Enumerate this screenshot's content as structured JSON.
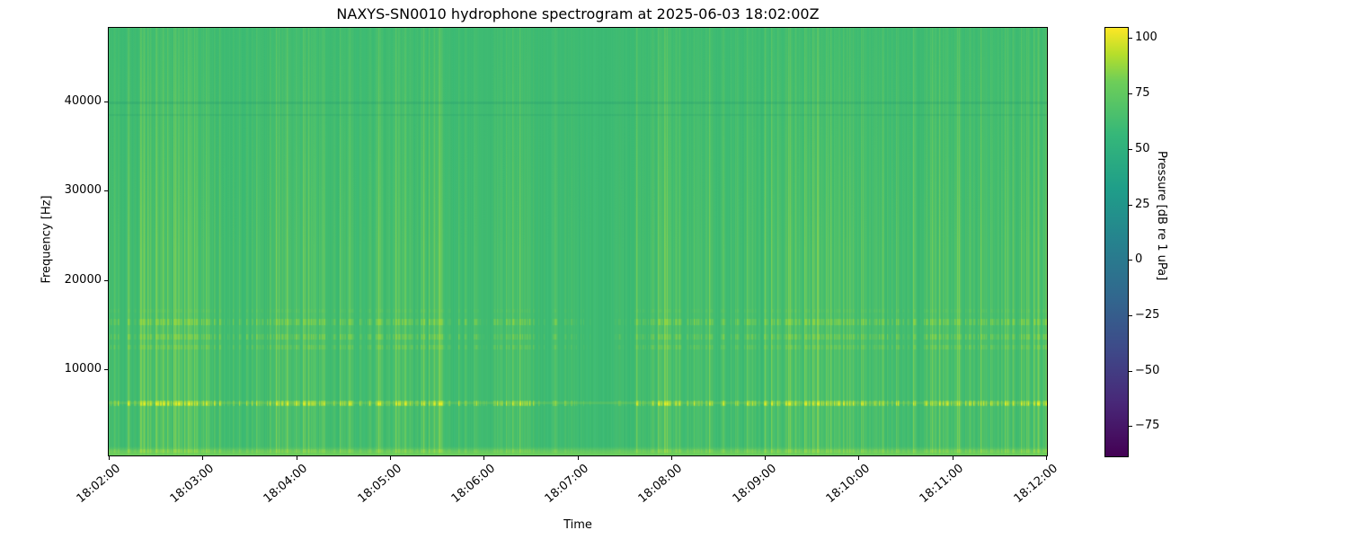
{
  "figure": {
    "background_color": "#ffffff"
  },
  "chart_data": {
    "type": "heatmap",
    "subtype": "spectrogram",
    "title": "NAXYS-SN0010 hydrophone spectrogram at 2025-06-03 18:02:00Z",
    "xlabel": "Time",
    "ylabel": "Frequency [Hz]",
    "x_tick_labels": [
      "18:02:00",
      "18:03:00",
      "18:04:00",
      "18:05:00",
      "18:06:00",
      "18:07:00",
      "18:08:00",
      "18:09:00",
      "18:10:00",
      "18:11:00",
      "18:12:00"
    ],
    "x_range": [
      "18:02:00",
      "18:12:00"
    ],
    "time_span_minutes": 10,
    "y_tick_values": [
      10000,
      20000,
      30000,
      40000
    ],
    "y_tick_labels": [
      "10000",
      "20000",
      "30000",
      "40000"
    ],
    "y_range_hz": [
      400,
      48200
    ],
    "grid": false,
    "legend": "none",
    "colorbar": {
      "label": "Pressure [dB re 1 uPa]",
      "tick_values": [
        100,
        75,
        50,
        25,
        0,
        -25,
        -50,
        -75
      ],
      "tick_labels": [
        "100",
        "75",
        "50",
        "25",
        "0",
        "−25",
        "−50",
        "−75"
      ],
      "vmin": -89,
      "vmax": 105,
      "colormap": "viridis",
      "gradient_stops": [
        {
          "pos": 0.0,
          "color": "#440154"
        },
        {
          "pos": 0.125,
          "color": "#482878"
        },
        {
          "pos": 0.25,
          "color": "#3e4a89"
        },
        {
          "pos": 0.375,
          "color": "#31688e"
        },
        {
          "pos": 0.5,
          "color": "#26828e"
        },
        {
          "pos": 0.625,
          "color": "#1f9e89"
        },
        {
          "pos": 0.75,
          "color": "#35b779"
        },
        {
          "pos": 0.875,
          "color": "#6ece58"
        },
        {
          "pos": 0.938,
          "color": "#b5de2b"
        },
        {
          "pos": 1.0,
          "color": "#fde725"
        }
      ]
    },
    "content": {
      "description": "Ambient level ~50-60 dB (mid-green) across 0.4-48 kHz; dense vertical broadband transient streaks clustered in time; bright tonal dashed band near 6.2 kHz; weaker dashed tonal bands near 12.6, 13.7, 15.4 and 16.6 kHz; faint darker notch lines near 38.5 and 39.9 kHz; brighter low-frequency strip below 1 kHz.",
      "background_color": "#3cbb74",
      "background_rgb": "60,187,116",
      "streak_rgb": "150,218,72",
      "streak_hot_rgb": "205,230,55",
      "render_seed": 1337,
      "bands": [
        {
          "name": "tonal-band-6200hz",
          "center_hz": 6200,
          "px": 6,
          "gain": 1.6,
          "max_alpha": 0.85,
          "rgb": "190,226,48",
          "core_rgb": "236,238,36",
          "base_alpha": 0.16
        },
        {
          "name": "tonal-band-15400hz",
          "center_hz": 15400,
          "px": 7,
          "gain": 1.1,
          "max_alpha": 0.6,
          "rgb": "166,219,53"
        },
        {
          "name": "tonal-band-13700hz",
          "center_hz": 13700,
          "px": 6,
          "gain": 1.0,
          "max_alpha": 0.55,
          "rgb": "160,217,58"
        },
        {
          "name": "tonal-band-12600hz",
          "center_hz": 12600,
          "px": 5,
          "gain": 0.9,
          "max_alpha": 0.5,
          "rgb": "150,214,64"
        },
        {
          "name": "tonal-band-16600hz",
          "center_hz": 16600,
          "px": 4,
          "gain": 0.5,
          "max_alpha": 0.3,
          "rgb": "130,208,80"
        }
      ],
      "notches": [
        {
          "name": "notch-39900hz",
          "center_hz": 39900,
          "px": 3,
          "alpha": 0.2,
          "rgb": "26,140,108"
        },
        {
          "name": "notch-38500hz",
          "center_hz": 38500,
          "px": 2,
          "alpha": 0.15,
          "rgb": "26,140,108"
        }
      ],
      "low_strip": {
        "name": "low-freq-bright-strip",
        "freq_range_hz": [
          100,
          1000
        ],
        "rgb": "140,216,80",
        "edge_rgb": "110,208,90"
      }
    }
  }
}
